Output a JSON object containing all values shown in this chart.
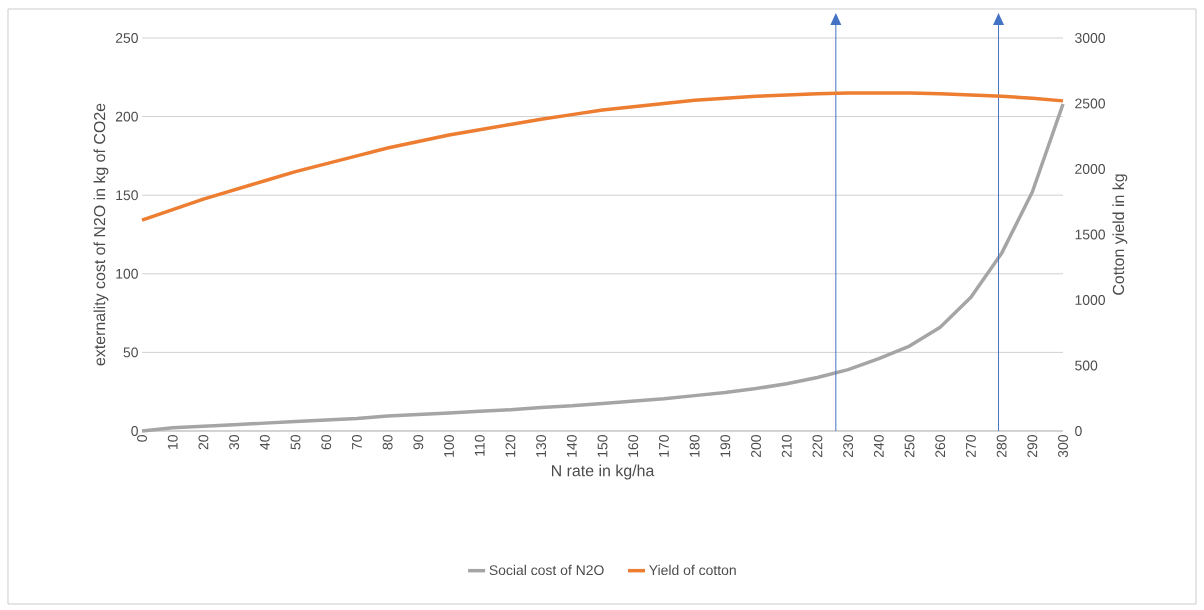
{
  "chart_data": {
    "type": "line",
    "xlabel": "N rate in kg/ha",
    "ylabel": "externality cost of N2O in kg of CO2e",
    "y2label": "Cotton yield in kg",
    "x": [
      0,
      10,
      20,
      30,
      40,
      50,
      60,
      70,
      80,
      90,
      100,
      110,
      120,
      130,
      140,
      150,
      160,
      170,
      180,
      190,
      200,
      210,
      220,
      230,
      240,
      250,
      260,
      270,
      280,
      290,
      300
    ],
    "series": [
      {
        "name": "Social cost of N2O",
        "color": "#a5a5a5",
        "values": [
          0,
          2,
          3,
          4,
          5,
          6,
          7,
          8,
          9.5,
          10.5,
          11.5,
          12.5,
          13.5,
          15,
          16,
          17.5,
          19,
          20.5,
          22.5,
          24.5,
          27,
          30,
          34,
          39,
          46,
          54,
          66,
          85,
          113,
          152,
          208
        ]
      },
      {
        "name": "Yield of cotton",
        "color": "#ed7d31",
        "axis": "y2",
        "values": [
          1610,
          1690,
          1770,
          1840,
          1910,
          1980,
          2040,
          2100,
          2160,
          2210,
          2260,
          2300,
          2340,
          2380,
          2415,
          2450,
          2475,
          2500,
          2525,
          2540,
          2555,
          2565,
          2575,
          2580,
          2580,
          2580,
          2575,
          2565,
          2555,
          2540,
          2520
        ]
      }
    ],
    "xlim": [
      0,
      300
    ],
    "xticks": [
      0,
      10,
      20,
      30,
      40,
      50,
      60,
      70,
      80,
      90,
      100,
      110,
      120,
      130,
      140,
      150,
      160,
      170,
      180,
      190,
      200,
      210,
      220,
      230,
      240,
      250,
      260,
      270,
      280,
      290,
      300
    ],
    "ylim": [
      0,
      250
    ],
    "yticks": [
      0,
      50,
      100,
      150,
      200,
      250
    ],
    "y2lim": [
      0,
      3000
    ],
    "y2ticks": [
      0,
      500,
      1000,
      1500,
      2000,
      2500,
      3000
    ],
    "ref_lines": [
      {
        "axis": "x",
        "value": 226,
        "color": "#4472c4"
      },
      {
        "axis": "x",
        "value": 279,
        "color": "#4472c4"
      }
    ],
    "grid": "y",
    "legend": "bottom",
    "marker": "none",
    "line_style": "solid"
  }
}
